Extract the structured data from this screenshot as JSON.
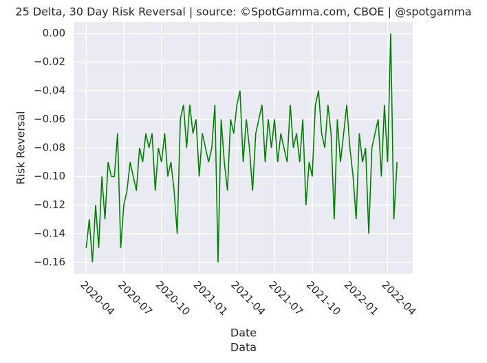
{
  "chart_data": {
    "type": "line",
    "title": "25 Delta, 30 Day Risk Reversal | source: ©SpotGamma.com, CBOE | @spotgamma",
    "xlabel": "Date",
    "ylabel": "Risk Reversal",
    "annotation": "Data",
    "color": "#008000",
    "grid": true,
    "x": [
      "2020-04",
      "2020-04",
      "2020-04",
      "2020-04",
      "2020-05",
      "2020-05",
      "2020-05",
      "2020-05",
      "2020-06",
      "2020-06",
      "2020-06",
      "2020-06",
      "2020-07",
      "2020-07",
      "2020-07",
      "2020-07",
      "2020-08",
      "2020-08",
      "2020-08",
      "2020-08",
      "2020-09",
      "2020-09",
      "2020-09",
      "2020-09",
      "2020-10",
      "2020-10",
      "2020-10",
      "2020-10",
      "2020-11",
      "2020-11",
      "2020-11",
      "2020-11",
      "2020-12",
      "2020-12",
      "2020-12",
      "2020-12",
      "2021-01",
      "2021-01",
      "2021-01",
      "2021-01",
      "2021-02",
      "2021-02",
      "2021-02",
      "2021-02",
      "2021-03",
      "2021-03",
      "2021-03",
      "2021-03",
      "2021-04",
      "2021-04",
      "2021-04",
      "2021-04",
      "2021-05",
      "2021-05",
      "2021-05",
      "2021-05",
      "2021-06",
      "2021-06",
      "2021-06",
      "2021-06",
      "2021-07",
      "2021-07",
      "2021-07",
      "2021-07",
      "2021-08",
      "2021-08",
      "2021-08",
      "2021-08",
      "2021-09",
      "2021-09",
      "2021-09",
      "2021-09",
      "2021-10",
      "2021-10",
      "2021-10",
      "2021-10",
      "2021-11",
      "2021-11",
      "2021-11",
      "2021-11",
      "2021-12",
      "2021-12",
      "2021-12",
      "2021-12",
      "2022-01",
      "2022-01",
      "2022-01",
      "2022-01",
      "2022-02",
      "2022-02",
      "2022-02",
      "2022-02",
      "2022-03",
      "2022-03",
      "2022-03",
      "2022-03",
      "2022-04",
      "2022-04",
      "2022-04",
      "2022-04"
    ],
    "values": [
      -0.15,
      -0.13,
      -0.16,
      -0.12,
      -0.15,
      -0.1,
      -0.13,
      -0.09,
      -0.1,
      -0.1,
      -0.07,
      -0.15,
      -0.12,
      -0.11,
      -0.09,
      -0.1,
      -0.11,
      -0.08,
      -0.09,
      -0.07,
      -0.08,
      -0.07,
      -0.11,
      -0.08,
      -0.09,
      -0.07,
      -0.1,
      -0.09,
      -0.11,
      -0.14,
      -0.06,
      -0.05,
      -0.08,
      -0.05,
      -0.07,
      -0.06,
      -0.1,
      -0.07,
      -0.08,
      -0.09,
      -0.08,
      -0.05,
      -0.16,
      -0.06,
      -0.09,
      -0.11,
      -0.06,
      -0.07,
      -0.05,
      -0.04,
      -0.09,
      -0.06,
      -0.08,
      -0.11,
      -0.07,
      -0.06,
      -0.05,
      -0.09,
      -0.06,
      -0.08,
      -0.06,
      -0.09,
      -0.07,
      -0.08,
      -0.09,
      -0.05,
      -0.08,
      -0.07,
      -0.09,
      -0.06,
      -0.12,
      -0.09,
      -0.1,
      -0.05,
      -0.04,
      -0.07,
      -0.08,
      -0.05,
      -0.07,
      -0.13,
      -0.06,
      -0.09,
      -0.07,
      -0.05,
      -0.08,
      -0.1,
      -0.13,
      -0.07,
      -0.09,
      -0.08,
      -0.14,
      -0.08,
      -0.07,
      -0.06,
      -0.1,
      -0.05,
      -0.09,
      0.0,
      -0.13,
      -0.09
    ],
    "xlim": [
      "2020-03",
      "2022-06"
    ],
    "xticks": [
      "2020-04",
      "2020-07",
      "2020-10",
      "2021-01",
      "2021-04",
      "2021-07",
      "2021-10",
      "2022-01",
      "2022-04"
    ],
    "ylim": [
      -0.168,
      0.008
    ],
    "yticks": [
      {
        "value": 0,
        "label": "0.00"
      },
      {
        "value": -0.02,
        "label": "−0.02"
      },
      {
        "value": -0.04,
        "label": "−0.04"
      },
      {
        "value": -0.06,
        "label": "−0.06"
      },
      {
        "value": -0.08,
        "label": "−0.08"
      },
      {
        "value": -0.1,
        "label": "−0.10"
      },
      {
        "value": -0.12,
        "label": "−0.12"
      },
      {
        "value": -0.14,
        "label": "−0.14"
      },
      {
        "value": -0.16,
        "label": "−0.16"
      }
    ]
  }
}
